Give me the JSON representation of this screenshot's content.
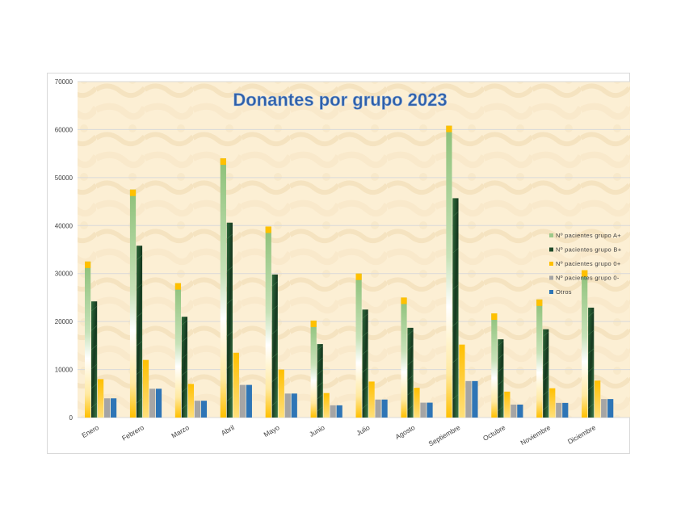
{
  "chart_data": {
    "type": "bar",
    "title": "Donantes por grupo 2023",
    "ylim": [
      0,
      70000
    ],
    "yticks": [
      0,
      10000,
      20000,
      30000,
      40000,
      50000,
      60000,
      70000
    ],
    "grid": true,
    "legend_position": "right",
    "categories": [
      "Enero",
      "Febrero",
      "Marzo",
      "Abril",
      "Mayo",
      "Junio",
      "Julio",
      "Agosto",
      "Septiembre",
      "Octubre",
      "Noviembre",
      "Diciembre"
    ],
    "series": [
      {
        "name": "Nº pacientes grupo A+",
        "color": "#9dc98a",
        "values": [
          32500,
          47500,
          28000,
          54000,
          39800,
          20200,
          30000,
          25000,
          60800,
          21700,
          24600,
          30700
        ]
      },
      {
        "name": "Nº pacientes grupo B+",
        "color": "#1f4a2a",
        "values": [
          24200,
          35800,
          21000,
          40600,
          29800,
          15300,
          22500,
          18700,
          45700,
          16300,
          18400,
          22900
        ]
      },
      {
        "name": "Nº pacientes grupo 0+",
        "color": "#ffc000",
        "values": [
          8000,
          12000,
          7000,
          13500,
          10000,
          5100,
          7500,
          6200,
          15200,
          5400,
          6100,
          7700
        ]
      },
      {
        "name": "Nº pacientes grupo 0-",
        "color": "#a5a5a5",
        "values": [
          4000,
          6000,
          3500,
          6800,
          5000,
          2550,
          3750,
          3100,
          7600,
          2700,
          3050,
          3850
        ]
      },
      {
        "name": "Otros",
        "color": "#2e75b6",
        "values": [
          4000,
          6000,
          3500,
          6800,
          5000,
          2550,
          3750,
          3100,
          7600,
          2700,
          3050,
          3850
        ]
      }
    ]
  }
}
